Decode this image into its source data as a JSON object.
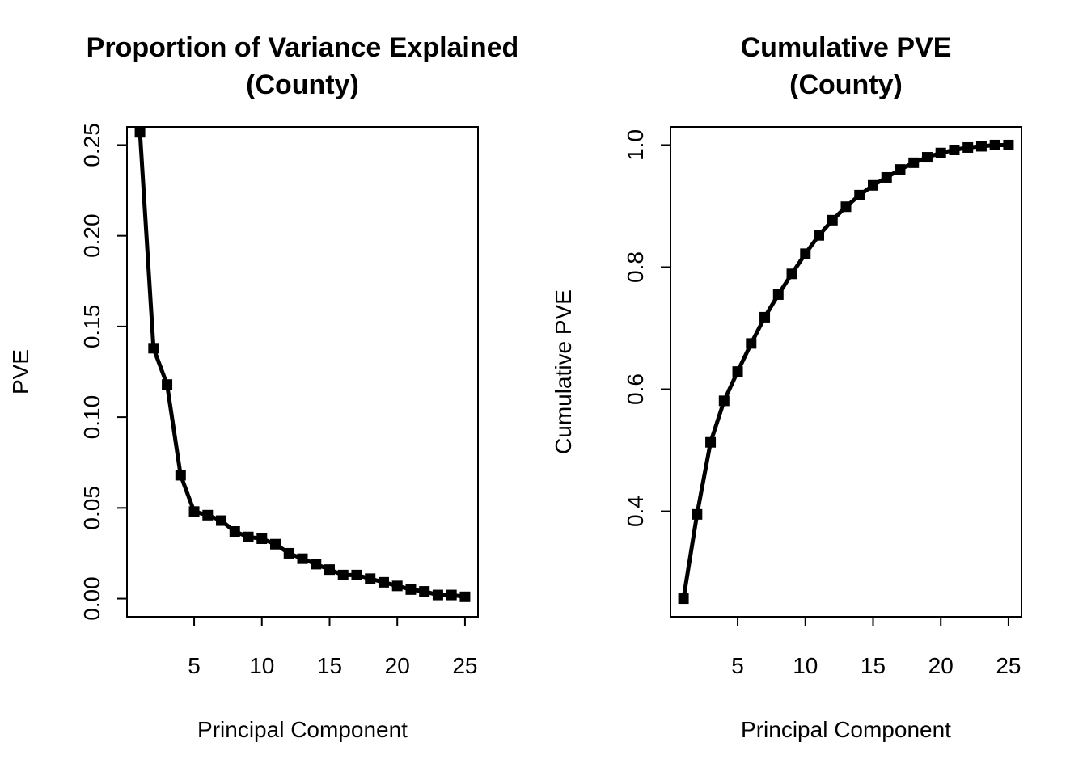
{
  "chart_data": [
    {
      "type": "line",
      "title": [
        "Proportion of Variance Explained",
        "(County)"
      ],
      "xlabel": "Principal Component",
      "ylabel": "PVE",
      "xlim": [
        1,
        25
      ],
      "ylim": [
        0.0,
        0.25
      ],
      "x_ticks": [
        5,
        10,
        15,
        20,
        25
      ],
      "x_tick_labels": [
        "5",
        "10",
        "15",
        "20",
        "25"
      ],
      "y_ticks": [
        0.0,
        0.05,
        0.1,
        0.15,
        0.2,
        0.25
      ],
      "y_tick_labels": [
        "0.00",
        "0.05",
        "0.10",
        "0.15",
        "0.20",
        "0.25"
      ],
      "grid": false,
      "marker": "square",
      "color": "#000000",
      "x": [
        1,
        2,
        3,
        4,
        5,
        6,
        7,
        8,
        9,
        10,
        11,
        12,
        13,
        14,
        15,
        16,
        17,
        18,
        19,
        20,
        21,
        22,
        23,
        24,
        25
      ],
      "series": [
        {
          "values": [
            0.257,
            0.138,
            0.118,
            0.068,
            0.048,
            0.046,
            0.043,
            0.037,
            0.034,
            0.033,
            0.03,
            0.025,
            0.022,
            0.019,
            0.016,
            0.013,
            0.013,
            0.011,
            0.009,
            0.007,
            0.005,
            0.004,
            0.002,
            0.002,
            0.001
          ]
        }
      ]
    },
    {
      "type": "line",
      "title": [
        "Cumulative PVE",
        "(County)"
      ],
      "xlabel": "Principal Component",
      "ylabel": "Cumulative PVE",
      "xlim": [
        1,
        25
      ],
      "ylim": [
        0.257,
        1.0
      ],
      "x_ticks": [
        5,
        10,
        15,
        20,
        25
      ],
      "x_tick_labels": [
        "5",
        "10",
        "15",
        "20",
        "25"
      ],
      "y_ticks": [
        0.4,
        0.6,
        0.8,
        1.0
      ],
      "y_tick_labels": [
        "0.4",
        "0.6",
        "0.8",
        "1.0"
      ],
      "grid": false,
      "marker": "square",
      "color": "#000000",
      "x": [
        1,
        2,
        3,
        4,
        5,
        6,
        7,
        8,
        9,
        10,
        11,
        12,
        13,
        14,
        15,
        16,
        17,
        18,
        19,
        20,
        21,
        22,
        23,
        24,
        25
      ],
      "series": [
        {
          "values": [
            0.257,
            0.395,
            0.513,
            0.581,
            0.629,
            0.675,
            0.718,
            0.755,
            0.789,
            0.822,
            0.852,
            0.877,
            0.899,
            0.918,
            0.934,
            0.947,
            0.96,
            0.971,
            0.98,
            0.987,
            0.992,
            0.996,
            0.998,
            1.0,
            1.0
          ]
        }
      ]
    }
  ]
}
